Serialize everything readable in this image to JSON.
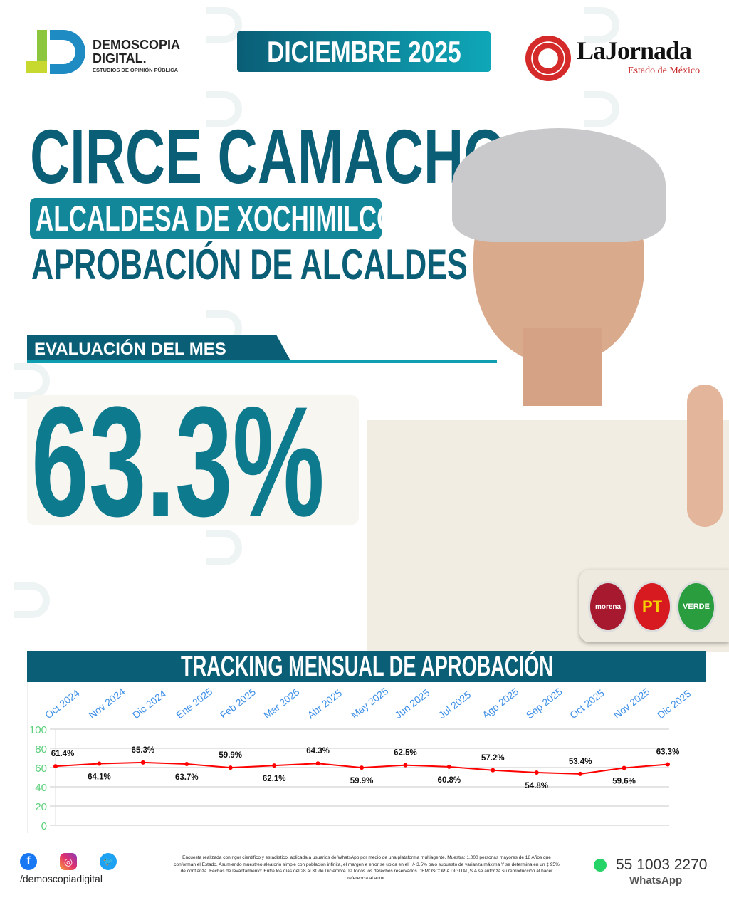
{
  "brand": {
    "name_line1": "DEMOSCOPIA",
    "name_line2": "DIGITAL.",
    "tagline": "ESTUDIOS DE OPINIÓN PÚBLICA"
  },
  "date_badge": "DICIEMBRE 2025",
  "partner": {
    "name": "LaJornada",
    "subtitle": "Estado de México"
  },
  "headline": {
    "name": "CIRCE CAMACHO",
    "role": "ALCALDESA DE XOCHIMILCO",
    "topic": "APROBACIÓN DE ALCALDES"
  },
  "evaluation": {
    "label": "EVALUACIÓN DEL MES",
    "value": "63.3%"
  },
  "parties": [
    "morena",
    "PT",
    "VERDE"
  ],
  "colors": {
    "teal": "#0b6e84",
    "line": "#ff0000",
    "ytick": "#5ccf7c",
    "xtick": "#3d8fe6"
  },
  "chart_data": {
    "type": "line",
    "title": "TRACKING MENSUAL DE APROBACIÓN",
    "categories": [
      "Oct 2024",
      "Nov 2024",
      "Dic 2024",
      "Ene 2025",
      "Feb 2025",
      "Mar 2025",
      "Abr 2025",
      "May 2025",
      "Jun 2025",
      "Jul 2025",
      "Ago 2025",
      "Sep 2025",
      "Oct 2025",
      "Nov 2025",
      "Dic 2025"
    ],
    "series": [
      {
        "values": [
          61.4,
          64.1,
          65.3,
          63.7,
          59.9,
          62.1,
          64.3,
          59.9,
          62.5,
          60.8,
          57.2,
          54.8,
          53.4,
          59.6,
          63.3
        ]
      }
    ],
    "data_labels": [
      "61.4%",
      "64.1%",
      "65.3%",
      "63.7%",
      "59.9%",
      "62.1%",
      "64.3%",
      "59.9%",
      "62.5%",
      "60.8%",
      "57.2%",
      "54.8%",
      "53.4%",
      "59.6%",
      "63.3%"
    ],
    "yticks": [
      "0",
      "20",
      "40",
      "60",
      "80",
      "100"
    ],
    "ylim": [
      0,
      100
    ],
    "grid": true
  },
  "footer": {
    "social_handle": "/demoscopiadigital",
    "social_icons": [
      "facebook-icon",
      "instagram-icon",
      "twitter-icon"
    ],
    "disclaimer": "Encuesta realizada con rigor científico y estadístico, aplicada a usuarios de WhatsApp por medio de una plataforma multiagente. Muestra: 1,000 personas mayores de 18 Años que conforman el Estado. Asumiendo muestreo aleatorio simple con población infinita, el margen e error se ubica en el +/- 3.5% bajo supuesto de varianza máxima Y se determina en un ‡ 95% de confianza. Fechas de levantamiento: Entre los días del 28 al 31 de Diciembre. © Todos los derechos reservados DEMOSCOPIA DIGITAL,S.A se autoriza su reproducción al hacer referencia al autor.",
    "phone": "55 1003 2270",
    "phone_label": "WhatsApp"
  }
}
